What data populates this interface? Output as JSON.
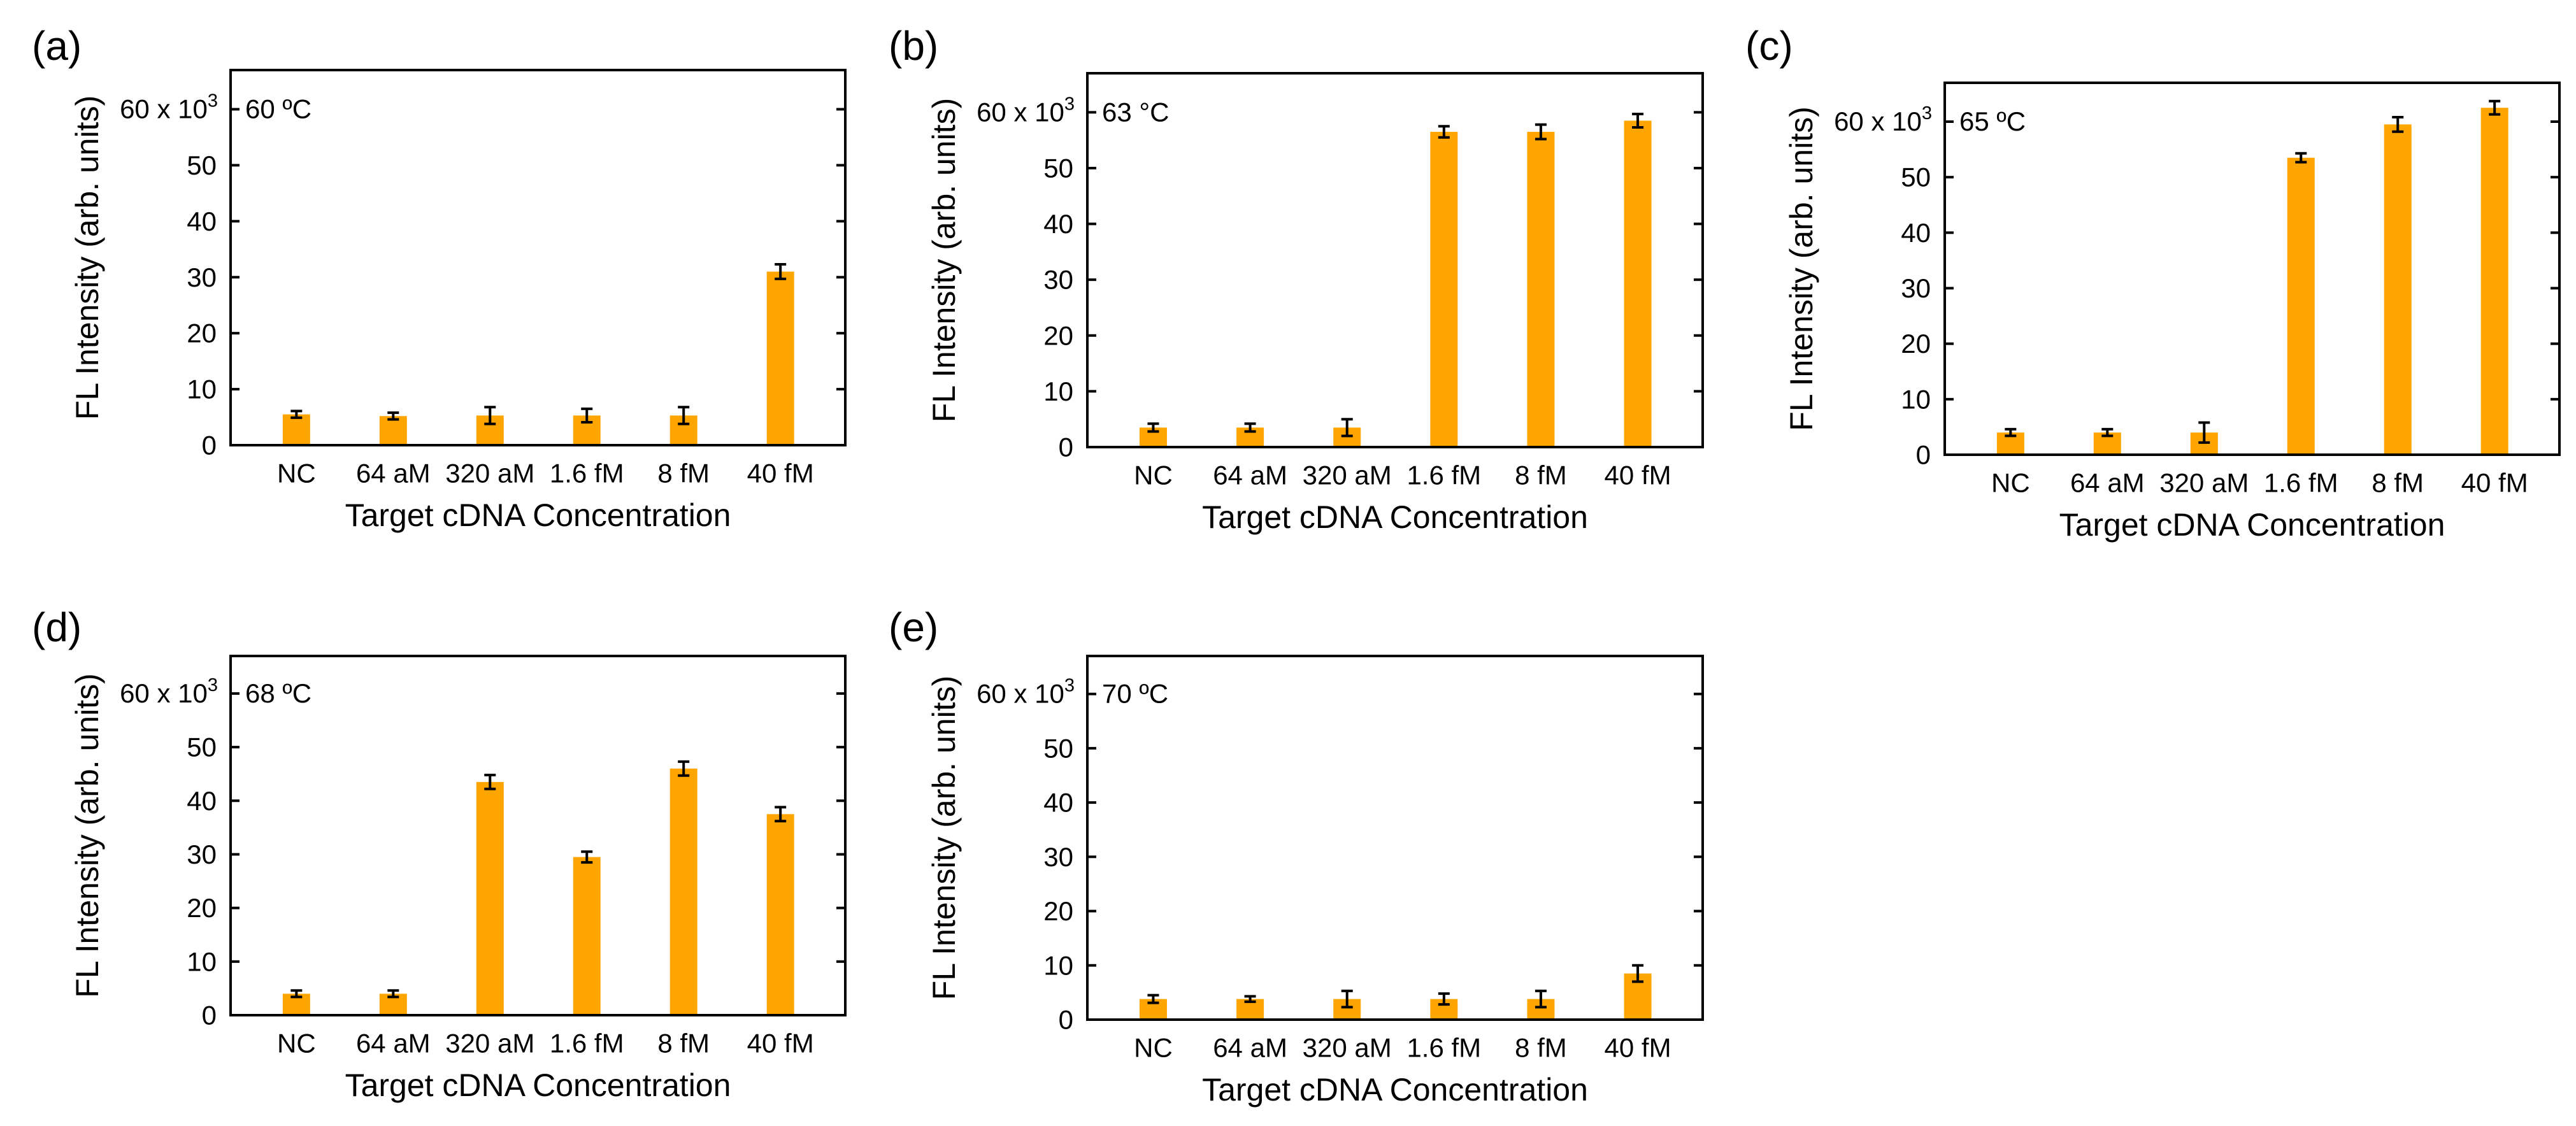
{
  "figure": {
    "background": "#ffffff",
    "bar_color": "#ffa500",
    "axis_color": "#000000"
  },
  "chart_data": [
    {
      "panel": "(a)",
      "type": "bar",
      "annotation": "60 ºC",
      "xlabel": "Target cDNA Concentration",
      "ylabel": "FL Intensity (arb. units)",
      "y_multiplier_label": {
        "base": "60 x 10",
        "exponent": "3"
      },
      "categories": [
        "NC",
        "64 aM",
        "320 aM",
        "1.6 fM",
        "8 fM",
        "40 fM"
      ],
      "values": [
        5.5,
        5.2,
        5.3,
        5.3,
        5.3,
        31
      ],
      "errors": [
        0.6,
        0.6,
        1.5,
        1.2,
        1.5,
        1.3
      ],
      "ylim": [
        0,
        67
      ],
      "yticks": [
        0,
        10,
        20,
        30,
        40,
        50,
        60
      ],
      "ytick_labels": [
        "0",
        "10",
        "20",
        "30",
        "40",
        "50",
        ""
      ]
    },
    {
      "panel": "(b)",
      "type": "bar",
      "annotation": "63 °C",
      "xlabel": "Target cDNA Concentration",
      "ylabel": "FL Intensity (arb. units)",
      "y_multiplier_label": {
        "base": "60 x 10",
        "exponent": "3"
      },
      "categories": [
        "NC",
        "64 aM",
        "320 aM",
        "1.6 fM",
        "8 fM",
        "40 fM"
      ],
      "values": [
        3.5,
        3.5,
        3.5,
        56.5,
        56.5,
        58.5
      ],
      "errors": [
        0.7,
        0.7,
        1.5,
        1.0,
        1.3,
        1.2
      ],
      "ylim": [
        0,
        67
      ],
      "yticks": [
        0,
        10,
        20,
        30,
        40,
        50,
        60
      ],
      "ytick_labels": [
        "0",
        "10",
        "20",
        "30",
        "40",
        "50",
        ""
      ]
    },
    {
      "panel": "(c)",
      "type": "bar",
      "annotation": "65 ºC",
      "xlabel": "Target cDNA Concentration",
      "ylabel": "FL Intensity (arb. units)",
      "y_multiplier_label": {
        "base": "60 x 10",
        "exponent": "3"
      },
      "categories": [
        "NC",
        "64 aM",
        "320 aM",
        "1.6 fM",
        "8 fM",
        "40 fM"
      ],
      "values": [
        4,
        4,
        4,
        53.5,
        59.5,
        62.5
      ],
      "errors": [
        0.6,
        0.6,
        1.8,
        0.8,
        1.3,
        1.2
      ],
      "ylim": [
        0,
        67
      ],
      "yticks": [
        0,
        10,
        20,
        30,
        40,
        50,
        60
      ],
      "ytick_labels": [
        "0",
        "10",
        "20",
        "30",
        "40",
        "50",
        ""
      ]
    },
    {
      "panel": "(d)",
      "type": "bar",
      "annotation": "68 ºC",
      "xlabel": "Target cDNA Concentration",
      "ylabel": "FL Intensity (arb. units)",
      "y_multiplier_label": {
        "base": "60 x 10",
        "exponent": "3"
      },
      "categories": [
        "NC",
        "64 aM",
        "320 aM",
        "1.6 fM",
        "8 fM",
        "40 fM"
      ],
      "values": [
        4,
        4,
        43.5,
        29.5,
        46,
        37.5
      ],
      "errors": [
        0.6,
        0.6,
        1.3,
        1.0,
        1.3,
        1.3
      ],
      "ylim": [
        0,
        67
      ],
      "yticks": [
        0,
        10,
        20,
        30,
        40,
        50,
        60
      ],
      "ytick_labels": [
        "0",
        "10",
        "20",
        "30",
        "40",
        "50",
        ""
      ]
    },
    {
      "panel": "(e)",
      "type": "bar",
      "annotation": "70 ºC",
      "xlabel": "Target cDNA Concentration",
      "ylabel": "FL Intensity (arb. units)",
      "y_multiplier_label": {
        "base": "60 x 10",
        "exponent": "3"
      },
      "categories": [
        "NC",
        "64 aM",
        "320 aM",
        "1.6 fM",
        "8 fM",
        "40 fM"
      ],
      "values": [
        3.8,
        3.8,
        3.8,
        3.8,
        3.8,
        8.5
      ],
      "errors": [
        0.7,
        0.5,
        1.5,
        1.0,
        1.5,
        1.5
      ],
      "ylim": [
        0,
        67
      ],
      "yticks": [
        0,
        10,
        20,
        30,
        40,
        50,
        60
      ],
      "ytick_labels": [
        "0",
        "10",
        "20",
        "30",
        "40",
        "50",
        ""
      ]
    }
  ]
}
